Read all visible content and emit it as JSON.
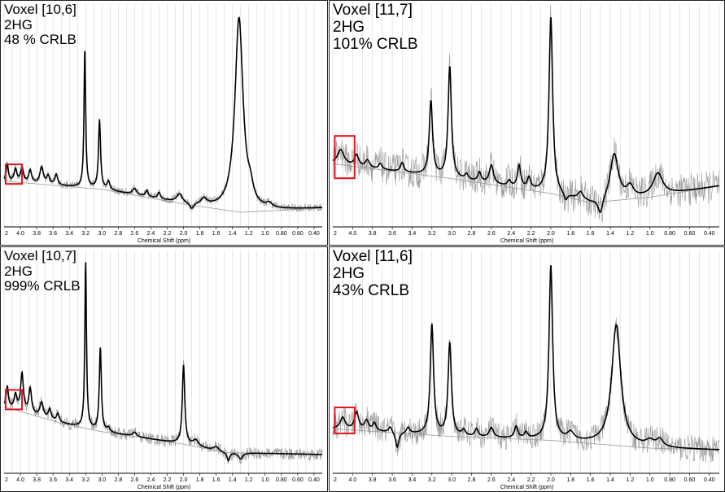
{
  "colors": {
    "fit": "#000000",
    "raw": "#9a9a9a",
    "baseline": "#9a9a9a",
    "grid": "#cfcfcf",
    "highlight": "#e0141e"
  },
  "panels": [
    {
      "title": "Voxel [10,6]",
      "metabolite": "2HG",
      "crlb": "48 % CRLB"
    },
    {
      "title": "Voxel [11,7]",
      "metabolite": "2HG",
      "crlb": "101% CRLB"
    },
    {
      "title": "Voxel [10,7]",
      "metabolite": "2HG",
      "crlb": "999% CRLB"
    },
    {
      "title": "Voxel [11,6]",
      "metabolite": "2HG",
      "crlb": "43% CRLB"
    }
  ],
  "chart_data": [
    {
      "type": "line",
      "xlabel": "Chemical Shift (ppm)",
      "x_reversed": true,
      "xlim": [
        4.2,
        0.3
      ],
      "x_ticks": [
        "2",
        "4.0",
        "3.8",
        "3.6",
        "3.4",
        "3.2",
        "3.0",
        "2.8",
        "2.6",
        "2.4",
        "2.2",
        "2.0",
        "1.8",
        "1.6",
        "1.4",
        "1.2",
        "1.0",
        "0.80",
        "0.60",
        "0.40"
      ],
      "ylim": [
        -2,
        105
      ],
      "highlight_box_ppm": [
        4.18,
        3.98
      ],
      "series": [
        {
          "role": "fit",
          "baseline": [
            [
              4.2,
              20
            ],
            [
              3.0,
              16
            ],
            [
              2.0,
              9
            ],
            [
              1.3,
              5
            ],
            [
              0.8,
              6
            ],
            [
              0.3,
              7
            ]
          ],
          "peaks": [
            [
              4.16,
              8,
              0.015
            ],
            [
              4.06,
              6,
              0.02
            ],
            [
              3.98,
              7,
              0.02
            ],
            [
              3.88,
              6,
              0.02
            ],
            [
              3.74,
              8,
              0.025
            ],
            [
              3.66,
              4,
              0.02
            ],
            [
              3.56,
              5,
              0.02
            ],
            [
              3.21,
              67,
              0.012
            ],
            [
              3.03,
              33,
              0.015
            ],
            [
              2.92,
              4,
              0.02
            ],
            [
              2.6,
              3,
              0.03
            ],
            [
              2.45,
              3,
              0.02
            ],
            [
              2.3,
              3,
              0.02
            ],
            [
              2.05,
              4,
              0.04
            ],
            [
              1.9,
              -3,
              0.03
            ],
            [
              1.75,
              3,
              0.04
            ],
            [
              1.32,
              93,
              0.06
            ],
            [
              1.18,
              6,
              0.04
            ],
            [
              0.95,
              2,
              0.04
            ]
          ]
        },
        {
          "role": "raw_spectrum",
          "noise": 2
        },
        {
          "role": "baseline"
        }
      ]
    },
    {
      "type": "line",
      "xlabel": "Chemical Shift (ppm)",
      "x_reversed": true,
      "xlim": [
        4.2,
        0.3
      ],
      "x_ticks": [
        "2",
        "4.0",
        "3.8",
        "3.6",
        "3.4",
        "3.2",
        "3.0",
        "2.8",
        "2.6",
        "2.4",
        "2.2",
        "2.0",
        "1.8",
        "1.6",
        "1.4",
        "1.2",
        "1.0",
        "0.80",
        "0.60",
        "0.40"
      ],
      "ylim": [
        -20,
        100
      ],
      "highlight_box_ppm": [
        4.18,
        3.98
      ],
      "series": [
        {
          "role": "fit",
          "baseline": [
            [
              4.2,
              14
            ],
            [
              3.0,
              6
            ],
            [
              2.0,
              -2
            ],
            [
              1.6,
              -7
            ],
            [
              1.0,
              -4
            ],
            [
              0.3,
              2
            ]
          ],
          "peaks": [
            [
              4.12,
              8,
              0.04
            ],
            [
              3.96,
              6,
              0.025
            ],
            [
              3.85,
              4,
              0.025
            ],
            [
              3.72,
              3,
              0.02
            ],
            [
              3.5,
              5,
              0.02
            ],
            [
              3.21,
              40,
              0.02
            ],
            [
              3.02,
              60,
              0.02
            ],
            [
              2.85,
              3,
              0.02
            ],
            [
              2.72,
              5,
              0.02
            ],
            [
              2.6,
              10,
              0.025
            ],
            [
              2.42,
              3,
              0.02
            ],
            [
              2.32,
              12,
              0.02
            ],
            [
              2.22,
              6,
              0.02
            ],
            [
              2.0,
              95,
              0.022
            ],
            [
              1.85,
              -4,
              0.02
            ],
            [
              1.7,
              4,
              0.03
            ],
            [
              1.5,
              -9,
              0.03
            ],
            [
              1.36,
              25,
              0.05
            ],
            [
              1.2,
              6,
              0.04
            ],
            [
              0.92,
              12,
              0.06
            ]
          ]
        },
        {
          "role": "raw_spectrum",
          "noise": 9
        },
        {
          "role": "baseline"
        }
      ]
    },
    {
      "type": "line",
      "xlabel": "Chemical Shift (ppm)",
      "x_reversed": true,
      "xlim": [
        4.2,
        0.3
      ],
      "x_ticks": [
        "2",
        "4.0",
        "3.8",
        "3.6",
        "3.4",
        "3.2",
        "3.0",
        "2.8",
        "2.6",
        "2.4",
        "2.2",
        "2.0",
        "1.8",
        "1.6",
        "1.4",
        "1.2",
        "1.0",
        "0.80",
        "0.60",
        "0.40"
      ],
      "ylim": [
        -2,
        105
      ],
      "highlight_box_ppm": [
        4.18,
        3.98
      ],
      "series": [
        {
          "role": "fit",
          "baseline": [
            [
              4.2,
              30
            ],
            [
              3.5,
              22
            ],
            [
              3.0,
              18
            ],
            [
              2.0,
              12
            ],
            [
              1.5,
              8
            ],
            [
              0.3,
              7
            ]
          ],
          "peaks": [
            [
              4.16,
              10,
              0.015
            ],
            [
              4.06,
              7,
              0.02
            ],
            [
              3.98,
              18,
              0.02
            ],
            [
              3.88,
              12,
              0.02
            ],
            [
              3.74,
              7,
              0.025
            ],
            [
              3.64,
              5,
              0.02
            ],
            [
              3.54,
              4,
              0.02
            ],
            [
              3.2,
              80,
              0.012
            ],
            [
              3.02,
              40,
              0.015
            ],
            [
              2.92,
              2,
              0.02
            ],
            [
              2.6,
              2,
              0.03
            ],
            [
              2.0,
              38,
              0.018
            ],
            [
              1.85,
              3,
              0.04
            ],
            [
              1.6,
              2,
              0.04
            ],
            [
              1.45,
              -4,
              0.02
            ],
            [
              1.3,
              -3,
              0.03
            ]
          ]
        },
        {
          "role": "raw_spectrum",
          "noise": 3
        },
        {
          "role": "baseline"
        }
      ]
    },
    {
      "type": "line",
      "xlabel": "Chemical Shift (ppm)",
      "x_reversed": true,
      "xlim": [
        4.2,
        0.3
      ],
      "x_ticks": [
        "2",
        "4.0",
        "3.8",
        "3.6",
        "3.4",
        "3.2",
        "3.0",
        "2.8",
        "2.6",
        "2.4",
        "2.2",
        "2.0",
        "1.8",
        "1.6",
        "1.4",
        "1.2",
        "1.0",
        "0.80",
        "0.60",
        "0.40"
      ],
      "ylim": [
        -15,
        100
      ],
      "highlight_box_ppm": [
        4.18,
        3.98
      ],
      "series": [
        {
          "role": "fit",
          "baseline": [
            [
              4.2,
              8
            ],
            [
              3.0,
              4
            ],
            [
              2.0,
              2
            ],
            [
              1.5,
              0
            ],
            [
              1.0,
              -2
            ],
            [
              0.3,
              -3
            ]
          ],
          "peaks": [
            [
              4.1,
              6,
              0.03
            ],
            [
              3.96,
              9,
              0.025
            ],
            [
              3.86,
              5,
              0.025
            ],
            [
              3.78,
              4,
              0.02
            ],
            [
              3.62,
              3,
              0.02
            ],
            [
              3.55,
              -8,
              0.02
            ],
            [
              3.44,
              3,
              0.02
            ],
            [
              3.2,
              57,
              0.02
            ],
            [
              3.02,
              48,
              0.02
            ],
            [
              2.88,
              3,
              0.02
            ],
            [
              2.75,
              4,
              0.02
            ],
            [
              2.6,
              5,
              0.025
            ],
            [
              2.35,
              6,
              0.02
            ],
            [
              2.25,
              3,
              0.02
            ],
            [
              2.0,
              90,
              0.022
            ],
            [
              1.8,
              4,
              0.04
            ],
            [
              1.34,
              62,
              0.055
            ],
            [
              1.0,
              3,
              0.05
            ],
            [
              0.9,
              4,
              0.04
            ]
          ]
        },
        {
          "role": "raw_spectrum",
          "noise": 7
        },
        {
          "role": "baseline"
        }
      ]
    }
  ]
}
